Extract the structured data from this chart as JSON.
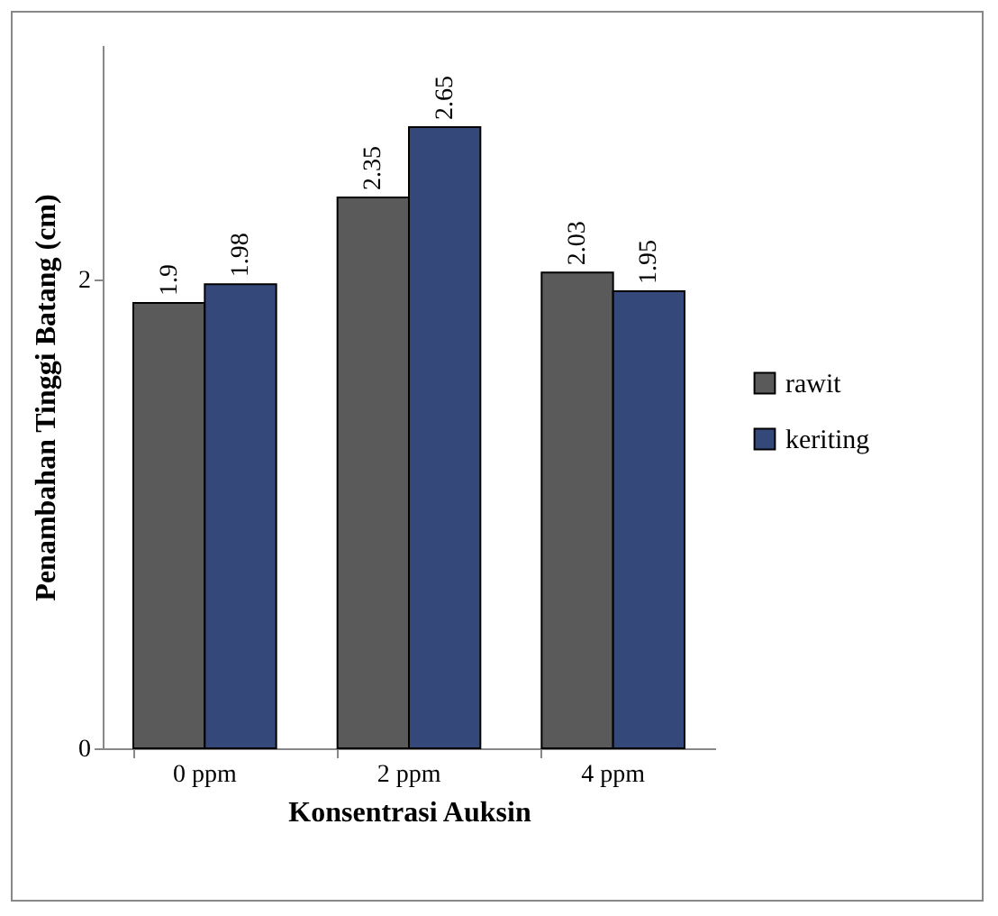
{
  "chart_data": {
    "type": "bar",
    "xlabel": "Konsentrasi Auksin",
    "ylabel": "Penambahan Tinggi Batang (cm)",
    "categories": [
      "0 ppm",
      "2 ppm",
      "4 ppm"
    ],
    "series": [
      {
        "name": "rawit",
        "color": "#5a5a5a",
        "values": [
          1.9,
          2.35,
          2.03
        ]
      },
      {
        "name": "keriting",
        "color": "#34497a",
        "values": [
          1.98,
          2.65,
          1.95
        ]
      }
    ],
    "ylim": [
      0,
      3
    ],
    "yticks": [
      0,
      2
    ],
    "grid": false,
    "legend": "right",
    "data_labels": true
  }
}
